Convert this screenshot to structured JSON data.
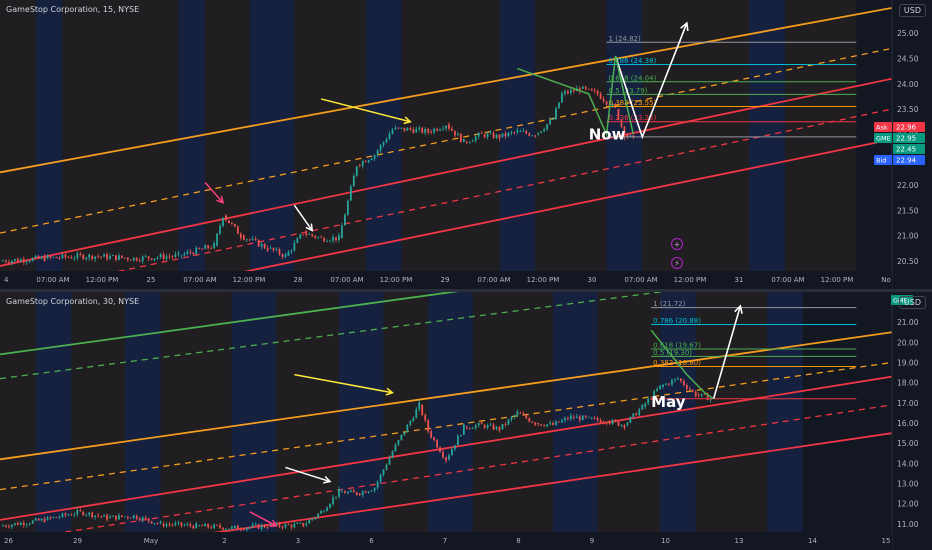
{
  "top_chart": {
    "title": "GameStop Corporation, 15, NYSE",
    "currency": "USD",
    "y_ticks": [
      "25.00",
      "24.50",
      "24.00",
      "23.50",
      "23.00",
      "22.50",
      "22.00",
      "21.50",
      "21.00",
      "20.50"
    ],
    "x_ticks": [
      "4",
      "07:00 AM",
      "12:00 PM",
      "25",
      "07:00 AM",
      "12:00 PM",
      "28",
      "07:00 AM",
      "12:00 PM",
      "29",
      "07:00 AM",
      "12:00 PM",
      "30",
      "07:00 AM",
      "12:00 PM",
      "31",
      "07:00 AM",
      "12:00 PM",
      "No"
    ],
    "fib_labels": [
      "1 (24.82)",
      "0.786 (24.38)",
      "0.618 (24.04)",
      "0.5 (23.79)",
      "0.382 (23.55)",
      "0.236 (23.25)"
    ],
    "annotation": "Now",
    "price_tags": [
      {
        "label": "Ask",
        "value": "22.96",
        "color": "#f23645"
      },
      {
        "label": "GME",
        "value": "22.95",
        "color": "#089981"
      },
      {
        "label": "",
        "value": "22.45",
        "color": "#089981"
      },
      {
        "label": "Bid",
        "value": "22.94",
        "color": "#2962ff"
      }
    ]
  },
  "bottom_chart": {
    "title": "GameStop Corporation, 30, NYSE",
    "currency": "USD",
    "badge": "GME",
    "y_ticks": [
      "21.00",
      "20.00",
      "19.00",
      "18.00",
      "17.00",
      "16.00",
      "15.00",
      "14.00",
      "13.00",
      "12.00",
      "11.00"
    ],
    "x_ticks": [
      "26",
      "29",
      "May",
      "2",
      "3",
      "6",
      "7",
      "8",
      "9",
      "10",
      "13",
      "14",
      "15"
    ],
    "fib_labels": [
      "1 (21.72)",
      "0.786 (20.88)",
      "0.618 (19.67)",
      "0.5 (19.30)",
      "0.382 (18.80)"
    ],
    "annotation": "May"
  },
  "chart_data": [
    {
      "type": "candlestick",
      "title": "GameStop Corporation, 15, NYSE",
      "ylim": [
        20.3,
        25.3
      ],
      "x_range": [
        0,
        100
      ],
      "close_path": [
        [
          0,
          20.5
        ],
        [
          5,
          20.55
        ],
        [
          10,
          20.6
        ],
        [
          15,
          20.55
        ],
        [
          20,
          20.6
        ],
        [
          24,
          20.8
        ],
        [
          25,
          21.4
        ],
        [
          27,
          21.0
        ],
        [
          30,
          20.75
        ],
        [
          32,
          20.6
        ],
        [
          34,
          21.05
        ],
        [
          36,
          20.95
        ],
        [
          38,
          20.95
        ],
        [
          40,
          22.4
        ],
        [
          42,
          22.6
        ],
        [
          44,
          23.1
        ],
        [
          46,
          23.1
        ],
        [
          48,
          23.05
        ],
        [
          50,
          23.2
        ],
        [
          52,
          22.85
        ],
        [
          54,
          23.0
        ],
        [
          56,
          22.95
        ],
        [
          58,
          23.05
        ],
        [
          60,
          23.0
        ],
        [
          62,
          23.3
        ],
        [
          63,
          23.8
        ],
        [
          65,
          23.9
        ],
        [
          67,
          23.8
        ],
        [
          69,
          23.5
        ],
        [
          70,
          23.0
        ],
        [
          71,
          22.9
        ]
      ],
      "channels": [
        {
          "name": "upper-orange",
          "color": "#f59d1e",
          "style": "solid",
          "y0": 22.25,
          "y1": 25.5
        },
        {
          "name": "mid-orange",
          "color": "#f59d1e",
          "style": "dashed",
          "y0": 21.05,
          "y1": 24.7
        },
        {
          "name": "upper-red",
          "color": "#f23645",
          "style": "solid",
          "y0": 20.4,
          "y1": 24.1
        },
        {
          "name": "mid-red",
          "color": "#f23645",
          "style": "dashed",
          "y0": 19.8,
          "y1": 23.5
        },
        {
          "name": "lower-red",
          "color": "#f23645",
          "style": "solid",
          "y0": 19.3,
          "y1": 22.9
        }
      ],
      "fib_levels": [
        24.82,
        24.38,
        24.04,
        23.79,
        23.55,
        23.25,
        22.95
      ]
    },
    {
      "type": "candlestick",
      "title": "GameStop Corporation, 30, NYSE",
      "ylim": [
        10.6,
        21.6
      ],
      "x_range": [
        0,
        100
      ],
      "close_path": [
        [
          0,
          10.9
        ],
        [
          5,
          11.2
        ],
        [
          9,
          11.6
        ],
        [
          12,
          11.3
        ],
        [
          15,
          11.4
        ],
        [
          18,
          11.0
        ],
        [
          22,
          10.9
        ],
        [
          26,
          10.8
        ],
        [
          30,
          10.9
        ],
        [
          34,
          10.95
        ],
        [
          36,
          11.6
        ],
        [
          38,
          12.6
        ],
        [
          40,
          12.5
        ],
        [
          42,
          12.8
        ],
        [
          44,
          14.6
        ],
        [
          46,
          16.1
        ],
        [
          47,
          16.9
        ],
        [
          48,
          15.6
        ],
        [
          50,
          14.2
        ],
        [
          52,
          15.8
        ],
        [
          54,
          15.9
        ],
        [
          56,
          15.7
        ],
        [
          58,
          16.5
        ],
        [
          60,
          16.0
        ],
        [
          62,
          15.9
        ],
        [
          64,
          16.3
        ],
        [
          66,
          16.2
        ],
        [
          68,
          16.1
        ],
        [
          70,
          15.9
        ],
        [
          72,
          16.8
        ],
        [
          74,
          17.8
        ],
        [
          76,
          18.2
        ],
        [
          78,
          17.4
        ],
        [
          80,
          17.2
        ]
      ],
      "channels": [
        {
          "name": "green-top",
          "color": "#4caf50",
          "style": "solid",
          "y0": 19.4,
          "y1": 25.5
        },
        {
          "name": "green-dash",
          "color": "#4caf50",
          "style": "dashed",
          "y0": 18.2,
          "y1": 24.0
        },
        {
          "name": "upper-orange",
          "color": "#f59d1e",
          "style": "solid",
          "y0": 14.2,
          "y1": 20.5
        },
        {
          "name": "mid-orange",
          "color": "#f59d1e",
          "style": "dashed",
          "y0": 12.7,
          "y1": 19.0
        },
        {
          "name": "upper-red",
          "color": "#f23645",
          "style": "solid",
          "y0": 11.2,
          "y1": 18.3
        },
        {
          "name": "mid-red",
          "color": "#f23645",
          "style": "dashed",
          "y0": 10.1,
          "y1": 16.9
        },
        {
          "name": "lower-red",
          "color": "#f23645",
          "style": "solid",
          "y0": 9.0,
          "y1": 15.5
        }
      ],
      "fib_levels": [
        21.72,
        20.88,
        19.67,
        19.3,
        18.8,
        17.2
      ]
    }
  ]
}
